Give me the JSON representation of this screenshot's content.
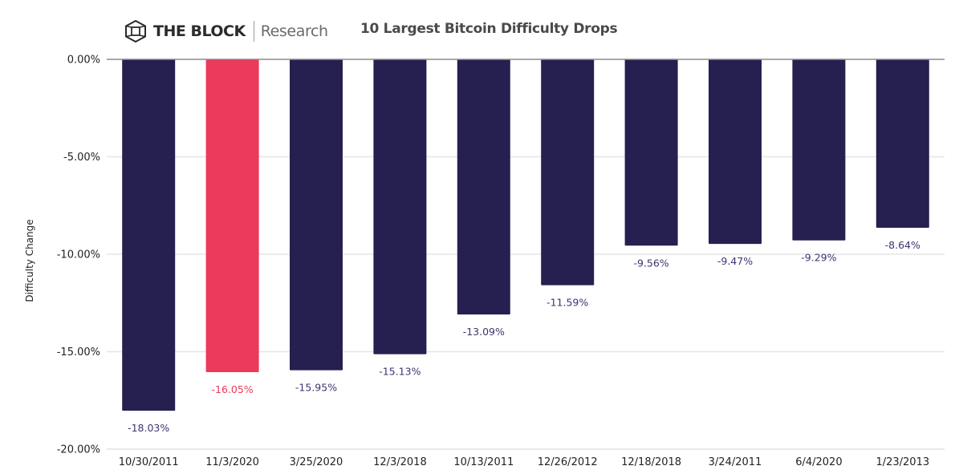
{
  "header": {
    "brand": "THE BLOCK",
    "brand_sub": "Research",
    "logo_icon": "cube-icon"
  },
  "chart_data": {
    "type": "bar",
    "title": "10 Largest Bitcoin Difficulty Drops",
    "xlabel": "",
    "ylabel": "Difficulty Change",
    "ylim": [
      -20,
      0
    ],
    "yticks": [
      0,
      -5,
      -10,
      -15,
      -20
    ],
    "ytick_labels": [
      "0.00%",
      "-5.00%",
      "-10.00%",
      "-15.00%",
      "-20.00%"
    ],
    "grid": true,
    "categories": [
      "10/30/2011",
      "11/3/2020",
      "3/25/2020",
      "12/3/2018",
      "10/13/2011",
      "12/26/2012",
      "12/18/2018",
      "3/24/2011",
      "6/4/2020",
      "1/23/2013"
    ],
    "values": [
      -18.03,
      -16.05,
      -15.95,
      -15.13,
      -13.09,
      -11.59,
      -9.56,
      -9.47,
      -9.29,
      -8.64
    ],
    "data_labels": [
      "-18.03%",
      "-16.05%",
      "-15.95%",
      "-15.13%",
      "-13.09%",
      "-11.59%",
      "-9.56%",
      "-9.47%",
      "-9.29%",
      "-8.64%"
    ],
    "highlight_index": 1,
    "colors": {
      "bar": "#252050",
      "highlight": "#ec3a5a",
      "label": "#3b3670",
      "highlight_label": "#ec3a5a",
      "grid": "#e6e6e6",
      "zero_line": "#8a8a8a"
    }
  }
}
